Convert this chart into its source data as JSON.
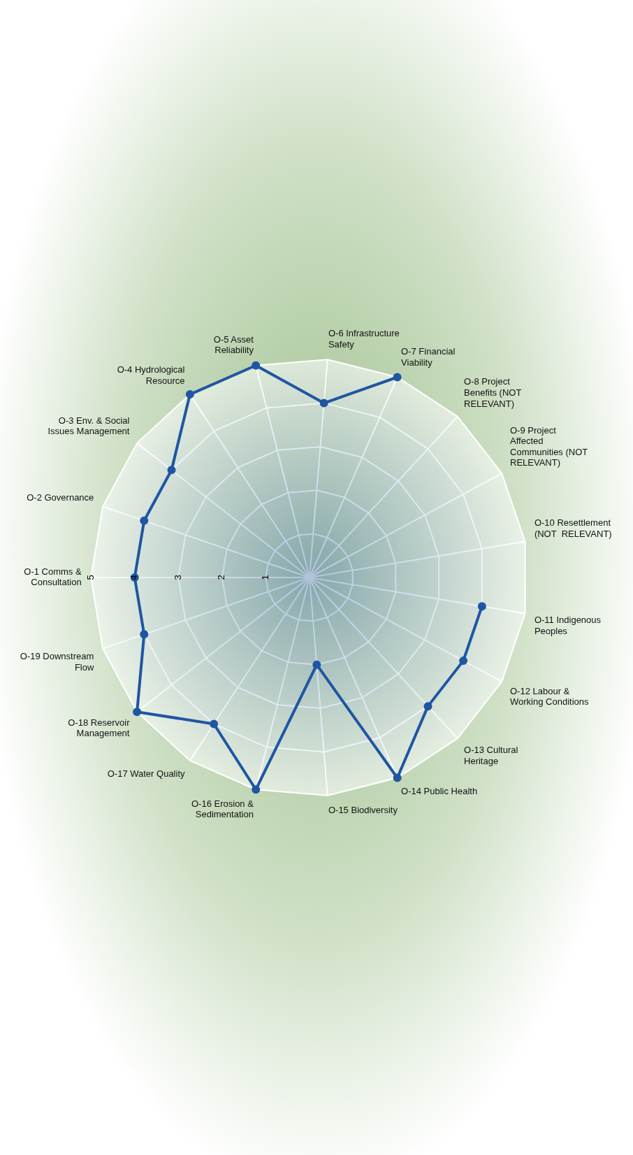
{
  "chart_data": {
    "type": "radar",
    "categories": [
      "O-1 Comms & Consultation",
      "O-2 Governance",
      "O-3 Env. & Social Issues Management",
      "O-4 Hydrological Resource",
      "O-5 Asset Reliability",
      "O-6 Infrastructure Safety",
      "O-7 Financial Viability",
      "O-8 Project Benefits (NOT  RELEVANT)",
      "O-9 Project Affected Communities (NOT  RELEVANT)",
      "O-10 Resettlement (NOT  RELEVANT)",
      "O-11 Indigenous Peoples",
      "O-12 Labour & Working Conditions",
      "O-13 Cultural Heritage",
      "O-14 Public Health",
      "O-15 Biodiversity",
      "O-16 Erosion & Sedimentation",
      "O-17 Water Quality",
      "O-18 Reservoir Management",
      "O-19 Downstream Flow"
    ],
    "series": [
      {
        "color": "#1f56a3",
        "values": [
          4,
          4,
          4,
          5,
          5,
          4,
          5,
          null,
          null,
          null,
          4,
          4,
          4,
          5,
          2,
          5,
          4,
          5,
          4
        ]
      }
    ],
    "ylim": [
      0,
      5
    ],
    "yticks": [
      1,
      2,
      3,
      4,
      5
    ],
    "grid": true,
    "legend": false,
    "marker": "circle",
    "line_style": "solid"
  }
}
